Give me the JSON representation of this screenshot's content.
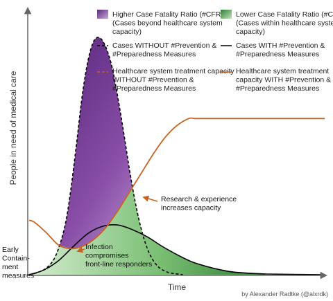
{
  "chart_data": {
    "type": "area",
    "xlabel": "Time",
    "ylabel": "People in need of medical care",
    "axes_arrows": true,
    "tick_labels": false,
    "x_domain": [
      0,
      100
    ],
    "y_domain": [
      0,
      100
    ],
    "legend": {
      "placement": "top",
      "entries": [
        {
          "name": "high_cfr",
          "kind": "gradient-swatch",
          "color": "#7a3f9a",
          "lines": [
            "Higher Case Fatality Ratio (#CFR)",
            "(Cases beyond healthcare system",
            "capacity)"
          ]
        },
        {
          "name": "low_cfr",
          "kind": "gradient-swatch",
          "color": "#3f9f45",
          "lines": [
            "Lower Case Fatality Ratio (#CFR)",
            "(Cases within healthcare system",
            "capacity)"
          ]
        },
        {
          "name": "cases_without",
          "kind": "dashed-line",
          "color": "#000000",
          "lines": [
            "Cases WITHOUT #Prevention &",
            "#Preparedness Measures"
          ]
        },
        {
          "name": "cases_with",
          "kind": "solid-line",
          "color": "#000000",
          "lines": [
            "Cases WITH #Prevention &",
            "#Preparedness Measures"
          ]
        },
        {
          "name": "capacity_without",
          "kind": "dashed-line",
          "color": "#c8621c",
          "lines": [
            "Healthcare system treatment capacity",
            "WITHOUT #Prevention &",
            "#Preparedness Measures"
          ]
        },
        {
          "name": "capacity_with",
          "kind": "solid-line",
          "color": "#c8621c",
          "lines": [
            "Healthcare system treatment",
            "capacity WITH #Prevention &",
            "#Preparedness Measures"
          ]
        }
      ]
    },
    "series": [
      {
        "key": "cases_without",
        "style": "dashed",
        "color": "#000000",
        "x": [
          0,
          3,
          6,
          9,
          12,
          14,
          16,
          18,
          20,
          22,
          24,
          26,
          28,
          30,
          32,
          34,
          36,
          38,
          40,
          42,
          44,
          46,
          48,
          52
        ],
        "y": [
          0,
          1,
          3,
          8,
          20,
          35,
          55,
          76,
          91,
          99,
          100,
          96,
          88,
          75,
          60,
          44,
          30,
          19,
          11,
          6,
          3,
          1.5,
          0.7,
          0
        ]
      },
      {
        "key": "cases_with",
        "style": "solid",
        "color": "#000000",
        "x": [
          0,
          5,
          10,
          15,
          20,
          25,
          30,
          35,
          40,
          45,
          50,
          55,
          60,
          65,
          70,
          80,
          100
        ],
        "y": [
          0,
          2,
          6,
          12,
          17.5,
          20.5,
          21,
          19,
          16,
          12,
          8.5,
          5.5,
          3.5,
          2,
          1,
          0.3,
          0
        ]
      },
      {
        "key": "capacity_without",
        "style": "dashed",
        "color": "#c8621c",
        "x": [
          0,
          5,
          10,
          15,
          20,
          25,
          30,
          35,
          40,
          45,
          50,
          55,
          60,
          65,
          70,
          75,
          80,
          85,
          90,
          95,
          100
        ],
        "y": [
          20,
          21,
          22,
          22.5,
          23,
          22.5,
          22,
          21.5,
          21,
          21,
          21.5,
          22,
          22.5,
          23,
          22.5,
          22,
          21.5,
          21,
          21,
          21.5,
          22
        ]
      },
      {
        "key": "capacity_with",
        "style": "solid",
        "color": "#c8621c",
        "x": [
          0,
          2,
          6,
          10,
          14,
          18,
          22,
          26,
          30,
          34,
          38,
          42,
          46,
          50,
          54,
          56,
          58,
          62,
          70,
          80,
          90,
          100
        ],
        "y": [
          23,
          22,
          17.5,
          12.5,
          11,
          12,
          15,
          20,
          27,
          35,
          43,
          51,
          58,
          63,
          66,
          66,
          66,
          66,
          66,
          66,
          66,
          66
        ]
      }
    ],
    "annotations": [
      {
        "key": "early",
        "lines": [
          "Early",
          "Contain-",
          "ment",
          "measures"
        ]
      },
      {
        "key": "infection",
        "lines": [
          "Infection",
          "compromises",
          "front-line responders"
        ]
      },
      {
        "key": "research",
        "lines": [
          "Research & experience",
          "increases capacity"
        ]
      }
    ],
    "credit": "by Alexander Radtke (@alxrdk)"
  }
}
